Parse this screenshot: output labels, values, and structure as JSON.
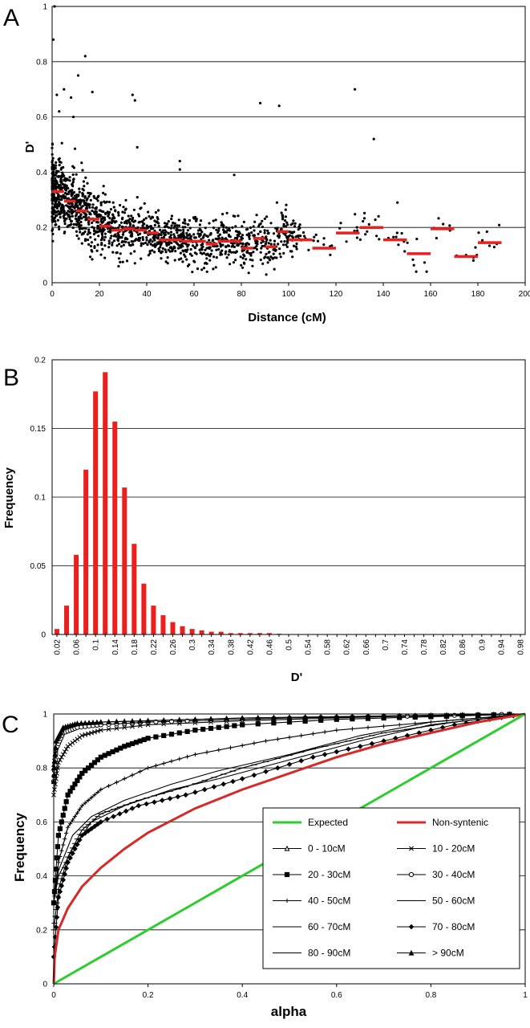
{
  "chart_data": [
    {
      "panel": "A",
      "type": "scatter",
      "xlabel": "Distance (cM)",
      "ylabel": "D'",
      "xlim": [
        0,
        200
      ],
      "ylim": [
        0,
        1
      ],
      "xticks": [
        "0",
        "20",
        "40",
        "60",
        "80",
        "100",
        "120",
        "140",
        "160",
        "180",
        "200"
      ],
      "yticks": [
        "0",
        "0.2",
        "0.4",
        "0.6",
        "0.8",
        "1"
      ],
      "grid": "horizontal",
      "colors": {
        "points": "#000000",
        "means": "#e8201e"
      },
      "outliers": [
        [
          0.5,
          0.88
        ],
        [
          1,
          1.0
        ],
        [
          5,
          0.7
        ],
        [
          14,
          0.82
        ],
        [
          11,
          0.75
        ],
        [
          8,
          0.67
        ],
        [
          17,
          0.69
        ],
        [
          34,
          0.68
        ],
        [
          35,
          0.66
        ],
        [
          88,
          0.65
        ],
        [
          96,
          0.64
        ],
        [
          128,
          0.7
        ],
        [
          136,
          0.52
        ],
        [
          3,
          0.62
        ],
        [
          9,
          0.6
        ],
        [
          2,
          0.68
        ],
        [
          54,
          0.44
        ],
        [
          54,
          0.41
        ],
        [
          77,
          0.39
        ],
        [
          36,
          0.49
        ],
        [
          146,
          0.29
        ],
        [
          138,
          0.24
        ],
        [
          175,
          0.1
        ],
        [
          188,
          0.14
        ]
      ],
      "bin_means": [
        {
          "x0": 0,
          "x1": 5,
          "y": 0.33
        },
        {
          "x0": 5,
          "x1": 10,
          "y": 0.295
        },
        {
          "x0": 10,
          "x1": 15,
          "y": 0.26
        },
        {
          "x0": 15,
          "x1": 20,
          "y": 0.23
        },
        {
          "x0": 20,
          "x1": 25,
          "y": 0.205
        },
        {
          "x0": 25,
          "x1": 30,
          "y": 0.19
        },
        {
          "x0": 30,
          "x1": 35,
          "y": 0.195
        },
        {
          "x0": 35,
          "x1": 40,
          "y": 0.19
        },
        {
          "x0": 40,
          "x1": 45,
          "y": 0.18
        },
        {
          "x0": 45,
          "x1": 50,
          "y": 0.155
        },
        {
          "x0": 50,
          "x1": 55,
          "y": 0.155
        },
        {
          "x0": 55,
          "x1": 60,
          "y": 0.15
        },
        {
          "x0": 60,
          "x1": 65,
          "y": 0.15
        },
        {
          "x0": 65,
          "x1": 70,
          "y": 0.14
        },
        {
          "x0": 70,
          "x1": 75,
          "y": 0.15
        },
        {
          "x0": 75,
          "x1": 80,
          "y": 0.15
        },
        {
          "x0": 80,
          "x1": 85,
          "y": 0.125
        },
        {
          "x0": 85,
          "x1": 90,
          "y": 0.16
        },
        {
          "x0": 90,
          "x1": 95,
          "y": 0.13
        },
        {
          "x0": 95,
          "x1": 100,
          "y": 0.185
        },
        {
          "x0": 100,
          "x1": 110,
          "y": 0.155
        },
        {
          "x0": 110,
          "x1": 120,
          "y": 0.125
        },
        {
          "x0": 120,
          "x1": 130,
          "y": 0.18
        },
        {
          "x0": 130,
          "x1": 140,
          "y": 0.2
        },
        {
          "x0": 140,
          "x1": 150,
          "y": 0.155
        },
        {
          "x0": 150,
          "x1": 160,
          "y": 0.105
        },
        {
          "x0": 160,
          "x1": 170,
          "y": 0.195
        },
        {
          "x0": 170,
          "x1": 180,
          "y": 0.095
        },
        {
          "x0": 180,
          "x1": 190,
          "y": 0.145
        }
      ]
    },
    {
      "panel": "B",
      "type": "bar",
      "xlabel": "D'",
      "ylabel": "Frequency",
      "ylim": [
        0,
        0.2
      ],
      "yticks": [
        "0",
        "0.05",
        "0.1",
        "0.15",
        "0.2"
      ],
      "grid": "horizontal",
      "colors": {
        "bars": "#e8201e"
      },
      "categories": [
        "0.02",
        "0.04",
        "0.06",
        "0.08",
        "0.1",
        "0.12",
        "0.14",
        "0.16",
        "0.18",
        "0.2",
        "0.22",
        "0.24",
        "0.26",
        "0.28",
        "0.3",
        "0.32",
        "0.34",
        "0.36",
        "0.38",
        "0.4",
        "0.42",
        "0.44",
        "0.46",
        "0.48",
        "0.5",
        "0.52",
        "0.54",
        "0.56",
        "0.58",
        "0.6",
        "0.62",
        "0.64",
        "0.66",
        "0.68",
        "0.7",
        "0.72",
        "0.74",
        "0.76",
        "0.78",
        "0.8",
        "0.82",
        "0.84",
        "0.86",
        "0.88",
        "0.9",
        "0.92",
        "0.94",
        "0.96",
        "0.98"
      ],
      "tick_labels": [
        "0.02",
        "0.06",
        "0.1",
        "0.14",
        "0.18",
        "0.22",
        "0.26",
        "0.3",
        "0.34",
        "0.38",
        "0.42",
        "0.46",
        "0.5",
        "0.54",
        "0.58",
        "0.62",
        "0.66",
        "0.7",
        "0.74",
        "0.78",
        "0.82",
        "0.86",
        "0.9",
        "0.94",
        "0.98"
      ],
      "values": [
        0.004,
        0.021,
        0.058,
        0.12,
        0.177,
        0.191,
        0.155,
        0.107,
        0.066,
        0.037,
        0.021,
        0.014,
        0.009,
        0.006,
        0.004,
        0.003,
        0.002,
        0.002,
        0.001,
        0.001,
        0.001,
        0.001,
        0.001,
        0.0005,
        0.0003,
        0,
        0,
        0,
        0,
        0,
        0,
        0,
        0,
        0,
        0,
        0,
        0,
        0,
        0,
        0,
        0,
        0,
        0,
        0,
        0,
        0,
        0,
        0,
        0
      ]
    },
    {
      "panel": "C",
      "type": "line",
      "xlabel": "alpha",
      "ylabel": "Frequency",
      "xlim": [
        0,
        1
      ],
      "ylim": [
        0,
        1
      ],
      "xticks": [
        "0",
        "0.2",
        "0.4",
        "0.6",
        "0.8",
        "1"
      ],
      "yticks": [
        "0",
        "0.2",
        "0.4",
        "0.6",
        "0.8",
        "1"
      ],
      "grid": "horizontal",
      "legend_placement": "lower-right",
      "series": [
        {
          "name": "Expected",
          "color": "#2ecc2e",
          "marker": "none",
          "x": [
            0,
            1
          ],
          "y": [
            0,
            1
          ]
        },
        {
          "name": "Non-syntenic",
          "color": "#d42a2a",
          "marker": "none",
          "x": [
            0,
            0.002,
            0.01,
            0.03,
            0.06,
            0.1,
            0.15,
            0.2,
            0.3,
            0.4,
            0.5,
            0.6,
            0.7,
            0.8,
            0.9,
            1.0
          ],
          "y": [
            0,
            0.1,
            0.2,
            0.28,
            0.36,
            0.43,
            0.5,
            0.56,
            0.65,
            0.72,
            0.78,
            0.84,
            0.89,
            0.93,
            0.97,
            1.0
          ]
        },
        {
          "name": "0 - 10cM",
          "color": "#000000",
          "marker": "triangle-open",
          "x": [
            0,
            0.005,
            0.02,
            0.05,
            0.1,
            0.2,
            0.4,
            0.6,
            0.8,
            1.0
          ],
          "y": [
            0.8,
            0.88,
            0.94,
            0.96,
            0.97,
            0.975,
            0.985,
            0.99,
            0.995,
            1.0
          ]
        },
        {
          "name": "10 - 20cM",
          "color": "#000000",
          "marker": "x",
          "x": [
            0,
            0.01,
            0.03,
            0.06,
            0.1,
            0.2,
            0.4,
            0.6,
            0.8,
            1.0
          ],
          "y": [
            0.7,
            0.82,
            0.88,
            0.92,
            0.94,
            0.96,
            0.975,
            0.985,
            0.995,
            1.0
          ]
        },
        {
          "name": "20 - 30cM",
          "color": "#000000",
          "marker": "square",
          "x": [
            0,
            0.01,
            0.03,
            0.06,
            0.1,
            0.15,
            0.2,
            0.3,
            0.4,
            0.6,
            0.8,
            1.0
          ],
          "y": [
            0.3,
            0.55,
            0.7,
            0.78,
            0.84,
            0.88,
            0.91,
            0.94,
            0.96,
            0.98,
            0.99,
            1.0
          ]
        },
        {
          "name": "30 - 40cM",
          "color": "#000000",
          "marker": "circle-open",
          "x": [
            0,
            0.005,
            0.02,
            0.05,
            0.1,
            0.2,
            0.3,
            0.5,
            0.7,
            1.0
          ],
          "y": [
            0.75,
            0.87,
            0.93,
            0.95,
            0.96,
            0.97,
            0.975,
            0.985,
            0.99,
            1.0
          ]
        },
        {
          "name": "40 - 50cM",
          "color": "#000000",
          "marker": "plus",
          "x": [
            0,
            0.01,
            0.03,
            0.06,
            0.1,
            0.2,
            0.3,
            0.45,
            0.6,
            0.8,
            1.0
          ],
          "y": [
            0.3,
            0.45,
            0.58,
            0.66,
            0.72,
            0.8,
            0.85,
            0.9,
            0.94,
            0.97,
            1.0
          ]
        },
        {
          "name": "50 - 60cM",
          "color": "#000000",
          "marker": "none",
          "x": [
            0,
            0.01,
            0.04,
            0.08,
            0.15,
            0.25,
            0.35,
            0.5,
            0.65,
            0.8,
            1.0
          ],
          "y": [
            0.3,
            0.42,
            0.55,
            0.62,
            0.68,
            0.74,
            0.79,
            0.85,
            0.92,
            0.97,
            1.0
          ]
        },
        {
          "name": "60 - 70cM",
          "color": "#000000",
          "marker": "none",
          "x": [
            0,
            0.01,
            0.04,
            0.08,
            0.15,
            0.25,
            0.35,
            0.5,
            0.65,
            0.8,
            1.0
          ],
          "y": [
            0.3,
            0.4,
            0.5,
            0.6,
            0.66,
            0.72,
            0.76,
            0.83,
            0.9,
            0.96,
            1.0
          ]
        },
        {
          "name": "70 - 80cM",
          "color": "#000000",
          "marker": "diamond",
          "x": [
            0,
            0.01,
            0.03,
            0.06,
            0.1,
            0.18,
            0.28,
            0.4,
            0.55,
            0.7,
            0.85,
            1.0
          ],
          "y": [
            0.1,
            0.32,
            0.45,
            0.55,
            0.6,
            0.66,
            0.7,
            0.76,
            0.84,
            0.9,
            0.96,
            1.0
          ]
        },
        {
          "name": "80 - 90cM",
          "color": "#000000",
          "marker": "dash",
          "x": [
            0,
            0.01,
            0.03,
            0.06,
            0.1,
            0.18,
            0.28,
            0.4,
            0.55,
            0.7,
            0.85,
            1.0
          ],
          "y": [
            0.2,
            0.35,
            0.47,
            0.57,
            0.63,
            0.68,
            0.73,
            0.8,
            0.87,
            0.93,
            0.97,
            1.0
          ]
        },
        {
          "name": "> 90cM",
          "color": "#000000",
          "marker": "triangle",
          "x": [
            0,
            0.005,
            0.02,
            0.05,
            0.1,
            0.2,
            0.4,
            0.6,
            0.8,
            1.0
          ],
          "y": [
            0.75,
            0.9,
            0.95,
            0.965,
            0.97,
            0.975,
            0.985,
            0.99,
            0.995,
            1.0
          ]
        }
      ]
    }
  ],
  "panel_labels": [
    "A",
    "B",
    "C"
  ]
}
